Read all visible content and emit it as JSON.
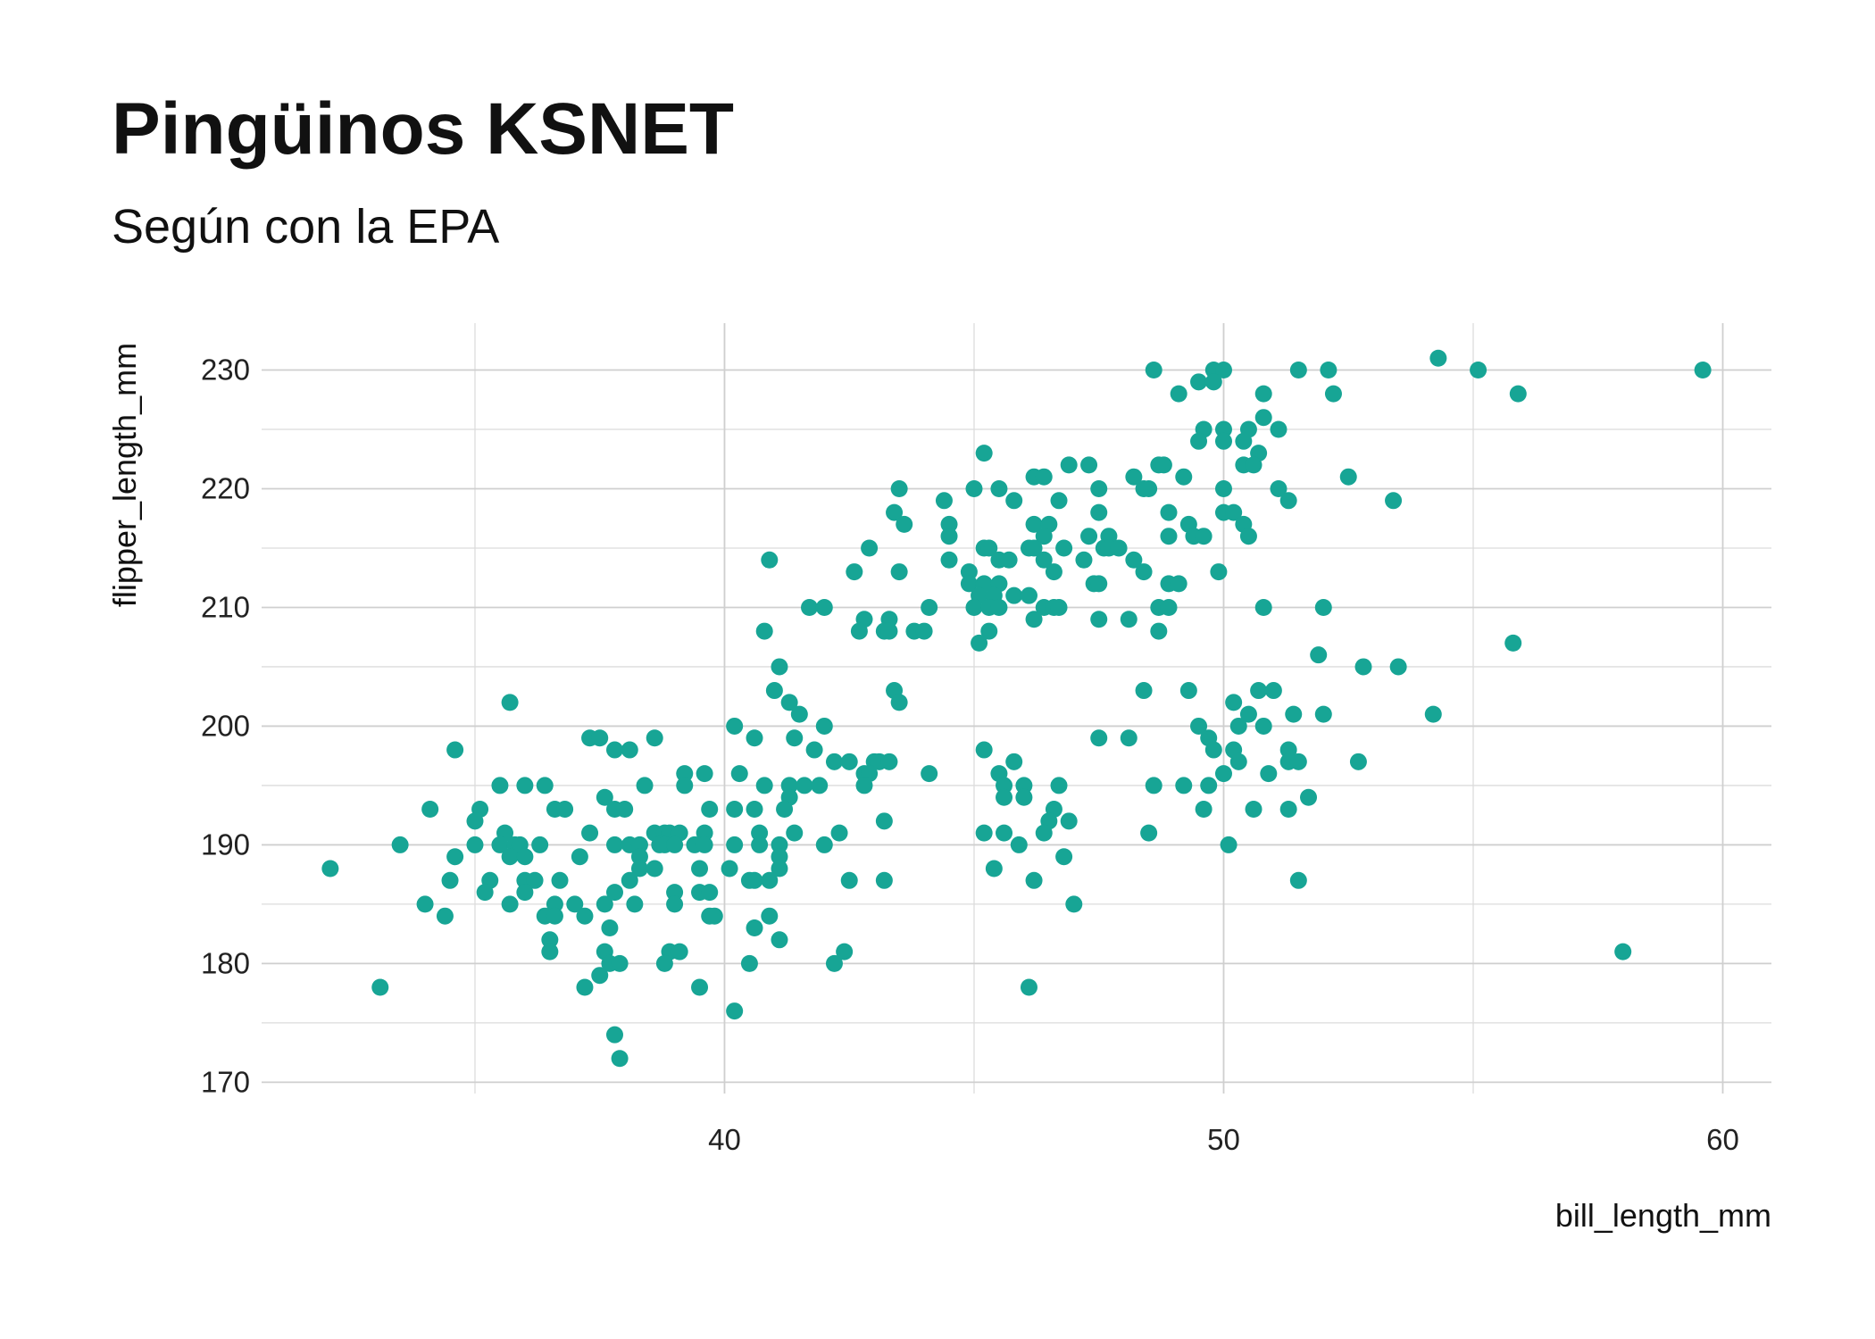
{
  "chart_data": {
    "type": "scatter",
    "title": "Pingüinos KSNET",
    "subtitle": "Según con la EPA",
    "x_label": "bill_length_mm",
    "y_label": "flipper_length_mm",
    "color": "#17a595",
    "grid": true,
    "xlim": [
      30.725,
      60.975
    ],
    "ylim": [
      169.05,
      233.95
    ],
    "xticks": [
      40,
      50,
      60
    ],
    "yticks": [
      170,
      180,
      190,
      200,
      210,
      220,
      230
    ],
    "x_minor_ticks": [
      35,
      45,
      55
    ],
    "y_minor_ticks": [
      175,
      185,
      195,
      205,
      215,
      225
    ],
    "x": [
      54.3,
      48.6,
      49.8,
      50.0,
      51.5,
      52.1,
      55.1,
      59.6,
      49.5,
      49.8,
      49.1,
      50.8,
      52.2,
      55.9,
      50.8,
      49.6,
      50.0,
      50.5,
      51.1,
      49.5,
      50.0,
      50.4,
      45.2,
      50.7,
      46.9,
      47.3,
      48.7,
      48.8,
      50.4,
      50.6,
      46.2,
      46.4,
      48.2,
      49.2,
      52.5,
      43.5,
      45.0,
      45.5,
      47.5,
      48.4,
      48.5,
      50.0,
      51.1,
      44.4,
      45.8,
      46.7,
      51.3,
      53.4,
      43.4,
      47.5,
      48.9,
      50.0,
      50.2,
      43.6,
      44.5,
      46.2,
      46.5,
      49.3,
      50.4,
      44.5,
      46.4,
      47.3,
      47.7,
      48.9,
      49.4,
      49.6,
      50.5,
      42.9,
      45.2,
      45.3,
      46.1,
      46.2,
      46.8,
      47.6,
      47.7,
      47.9,
      40.9,
      44.5,
      45.5,
      45.7,
      46.4,
      47.2,
      48.2,
      42.6,
      43.5,
      44.9,
      46.6,
      48.4,
      49.9,
      44.9,
      45.2,
      45.5,
      47.4,
      47.5,
      48.9,
      49.1,
      45.1,
      45.4,
      45.8,
      46.1,
      41.7,
      42.0,
      44.1,
      45.0,
      45.3,
      45.5,
      46.4,
      46.6,
      46.7,
      48.7,
      48.9,
      50.8,
      52.0,
      42.8,
      43.3,
      46.2,
      47.5,
      48.1,
      40.8,
      42.7,
      43.2,
      43.3,
      43.8,
      44.0,
      45.3,
      48.7,
      45.1,
      55.8,
      51.9,
      41.1,
      52.8,
      53.5,
      41.0,
      43.4,
      48.4,
      49.3,
      50.7,
      51.0,
      35.7,
      41.3,
      43.5,
      50.2,
      41.5,
      50.5,
      51.4,
      52.0,
      54.2,
      40.2,
      42.0,
      49.5,
      50.3,
      50.8,
      37.3,
      37.5,
      38.6,
      40.6,
      41.4,
      47.5,
      48.1,
      49.7,
      34.6,
      37.8,
      38.1,
      41.8,
      45.2,
      49.8,
      50.2,
      51.3,
      42.2,
      42.5,
      43.0,
      43.1,
      43.3,
      45.8,
      50.3,
      51.3,
      51.5,
      52.7,
      39.2,
      39.6,
      40.3,
      42.8,
      42.9,
      44.1,
      45.5,
      50.0,
      50.9,
      35.5,
      36.0,
      36.4,
      38.4,
      39.2,
      40.8,
      41.3,
      41.6,
      41.9,
      42.8,
      45.6,
      46.0,
      46.7,
      48.6,
      49.2,
      49.7,
      37.6,
      41.3,
      45.6,
      46.0,
      51.7,
      34.1,
      35.1,
      36.6,
      36.8,
      37.8,
      38.0,
      39.7,
      40.2,
      40.6,
      41.2,
      46.6,
      49.6,
      50.6,
      51.3,
      35.0,
      43.2,
      46.5,
      46.9,
      35.6,
      37.3,
      38.6,
      38.8,
      38.9,
      39.1,
      39.6,
      40.7,
      41.4,
      42.3,
      45.2,
      45.6,
      46.4,
      48.5,
      33.5,
      35.0,
      35.5,
      35.8,
      35.9,
      36.3,
      37.8,
      38.1,
      38.3,
      38.7,
      38.8,
      39.0,
      39.4,
      39.6,
      40.2,
      40.7,
      41.1,
      42.0,
      45.9,
      50.1,
      34.6,
      35.7,
      36.0,
      37.1,
      38.3,
      41.1,
      46.8,
      32.1,
      38.3,
      38.6,
      39.5,
      40.1,
      41.1,
      45.4,
      34.5,
      35.3,
      36.0,
      36.2,
      36.7,
      38.1,
      40.5,
      40.6,
      40.9,
      42.5,
      43.2,
      46.2,
      51.5,
      35.2,
      36.0,
      37.8,
      39.0,
      39.5,
      39.7,
      34.0,
      35.7,
      36.6,
      37.0,
      37.6,
      38.2,
      39.0,
      47.0,
      34.4,
      36.4,
      36.6,
      37.2,
      39.7,
      39.8,
      40.9,
      37.7,
      40.6,
      36.5,
      41.1,
      36.5,
      37.6,
      38.9,
      39.1,
      42.4,
      58.0,
      37.7,
      37.9,
      38.8,
      40.5,
      42.2,
      37.5,
      33.1,
      37.2,
      39.5,
      46.1,
      40.2,
      37.8,
      37.9
    ],
    "values": [
      231,
      230,
      230,
      230,
      230,
      230,
      230,
      230,
      229,
      229,
      228,
      228,
      228,
      228,
      226,
      225,
      225,
      225,
      225,
      224,
      224,
      224,
      223,
      223,
      222,
      222,
      222,
      222,
      222,
      222,
      221,
      221,
      221,
      221,
      221,
      220,
      220,
      220,
      220,
      220,
      220,
      220,
      220,
      219,
      219,
      219,
      219,
      219,
      218,
      218,
      218,
      218,
      218,
      217,
      217,
      217,
      217,
      217,
      217,
      216,
      216,
      216,
      216,
      216,
      216,
      216,
      216,
      215,
      215,
      215,
      215,
      215,
      215,
      215,
      215,
      215,
      214,
      214,
      214,
      214,
      214,
      214,
      214,
      213,
      213,
      213,
      213,
      213,
      213,
      212,
      212,
      212,
      212,
      212,
      212,
      212,
      211,
      211,
      211,
      211,
      210,
      210,
      210,
      210,
      210,
      210,
      210,
      210,
      210,
      210,
      210,
      210,
      210,
      209,
      209,
      209,
      209,
      209,
      208,
      208,
      208,
      208,
      208,
      208,
      208,
      208,
      207,
      207,
      206,
      205,
      205,
      205,
      203,
      203,
      203,
      203,
      203,
      203,
      202,
      202,
      202,
      202,
      201,
      201,
      201,
      201,
      201,
      200,
      200,
      200,
      200,
      200,
      199,
      199,
      199,
      199,
      199,
      199,
      199,
      199,
      198,
      198,
      198,
      198,
      198,
      198,
      198,
      198,
      197,
      197,
      197,
      197,
      197,
      197,
      197,
      197,
      197,
      197,
      196,
      196,
      196,
      196,
      196,
      196,
      196,
      196,
      196,
      195,
      195,
      195,
      195,
      195,
      195,
      195,
      195,
      195,
      195,
      195,
      195,
      195,
      195,
      195,
      195,
      194,
      194,
      194,
      194,
      194,
      193,
      193,
      193,
      193,
      193,
      193,
      193,
      193,
      193,
      193,
      193,
      193,
      193,
      193,
      192,
      192,
      192,
      192,
      191,
      191,
      191,
      191,
      191,
      191,
      191,
      191,
      191,
      191,
      191,
      191,
      191,
      191,
      190,
      190,
      190,
      190,
      190,
      190,
      190,
      190,
      190,
      190,
      190,
      190,
      190,
      190,
      190,
      190,
      190,
      190,
      190,
      190,
      189,
      189,
      189,
      189,
      189,
      189,
      189,
      188,
      188,
      188,
      188,
      188,
      188,
      188,
      187,
      187,
      187,
      187,
      187,
      187,
      187,
      187,
      187,
      187,
      187,
      187,
      187,
      186,
      186,
      186,
      186,
      186,
      186,
      185,
      185,
      185,
      185,
      185,
      185,
      185,
      185,
      184,
      184,
      184,
      184,
      184,
      184,
      184,
      183,
      183,
      182,
      182,
      181,
      181,
      181,
      181,
      181,
      181,
      180,
      180,
      180,
      180,
      180,
      179,
      178,
      178,
      178,
      178,
      176,
      174,
      172
    ]
  }
}
